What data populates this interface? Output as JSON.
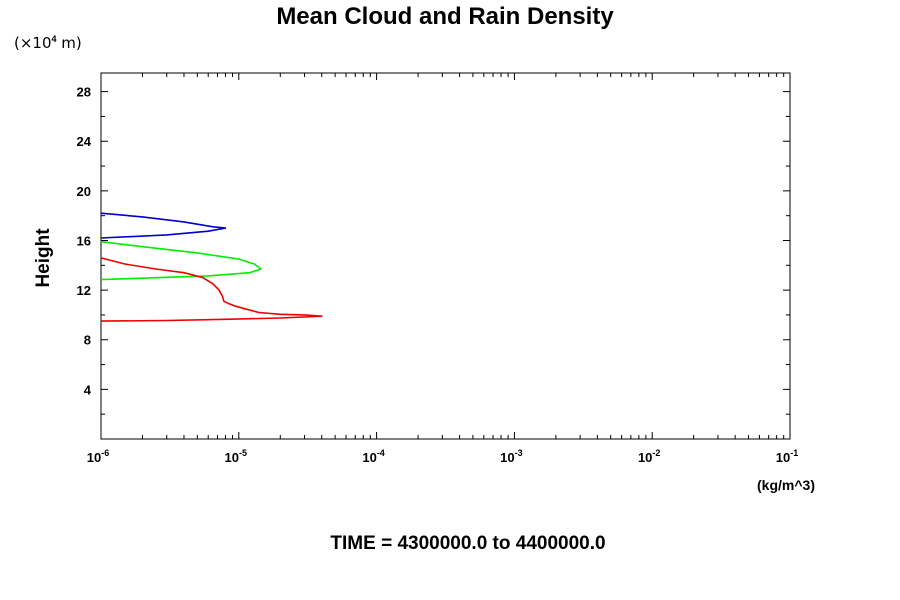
{
  "chart_data": {
    "type": "line",
    "title": "Mean Cloud and Rain Density",
    "ylabel": "Height",
    "y_scale_label": "(×10",
    "y_scale_exp": "4",
    "y_scale_unit": " m)",
    "x_unit_label": "(kg/m^3)",
    "footer": "TIME = 4300000.0 to 4400000.0",
    "x_scale": "log",
    "xlim": [
      1e-06,
      0.1
    ],
    "ylim": [
      0,
      29.5
    ],
    "y_ticks": [
      4,
      8,
      12,
      16,
      20,
      24,
      28
    ],
    "x_ticks": [
      {
        "base": "10",
        "exp": "-6",
        "value": 1e-06
      },
      {
        "base": "10",
        "exp": "-5",
        "value": 1e-05
      },
      {
        "base": "10",
        "exp": "-4",
        "value": 0.0001
      },
      {
        "base": "10",
        "exp": "-3",
        "value": 0.001
      },
      {
        "base": "10",
        "exp": "-2",
        "value": 0.01
      },
      {
        "base": "10",
        "exp": "-1",
        "value": 0.1
      }
    ],
    "grid": false,
    "legend": "none",
    "series": [
      {
        "color": "#0000cc",
        "points": [
          [
            1e-06,
            18.2
          ],
          [
            2e-06,
            17.9
          ],
          [
            4e-06,
            17.5
          ],
          [
            6.5e-06,
            17.1
          ],
          [
            8e-06,
            17.0
          ],
          [
            6e-06,
            16.75
          ],
          [
            3e-06,
            16.45
          ],
          [
            1e-06,
            16.2
          ]
        ]
      },
      {
        "color": "#00ee00",
        "points": [
          [
            1e-06,
            15.9
          ],
          [
            2e-06,
            15.5
          ],
          [
            5e-06,
            15.0
          ],
          [
            1e-05,
            14.5
          ],
          [
            1.3e-05,
            14.1
          ],
          [
            1.45e-05,
            13.7
          ],
          [
            1.2e-05,
            13.4
          ],
          [
            6e-06,
            13.15
          ],
          [
            2.5e-06,
            13.0
          ],
          [
            1e-06,
            12.85
          ]
        ]
      },
      {
        "color": "#ee0000",
        "points": [
          [
            1e-06,
            14.6
          ],
          [
            1.5e-06,
            14.1
          ],
          [
            2.5e-06,
            13.7
          ],
          [
            4e-06,
            13.4
          ],
          [
            5.5e-06,
            13.0
          ],
          [
            6.5e-06,
            12.5
          ],
          [
            7.2e-06,
            12.0
          ],
          [
            7.6e-06,
            11.5
          ],
          [
            7.8e-06,
            11.1
          ],
          [
            8.5e-06,
            10.9
          ],
          [
            9.5e-06,
            10.7
          ],
          [
            1.1e-05,
            10.5
          ],
          [
            1.4e-05,
            10.2
          ],
          [
            2e-05,
            10.05
          ],
          [
            3e-05,
            10.0
          ],
          [
            4e-05,
            9.9
          ],
          [
            2e-05,
            9.75
          ],
          [
            8e-06,
            9.65
          ],
          [
            3e-06,
            9.55
          ],
          [
            1e-06,
            9.5
          ]
        ]
      }
    ]
  }
}
